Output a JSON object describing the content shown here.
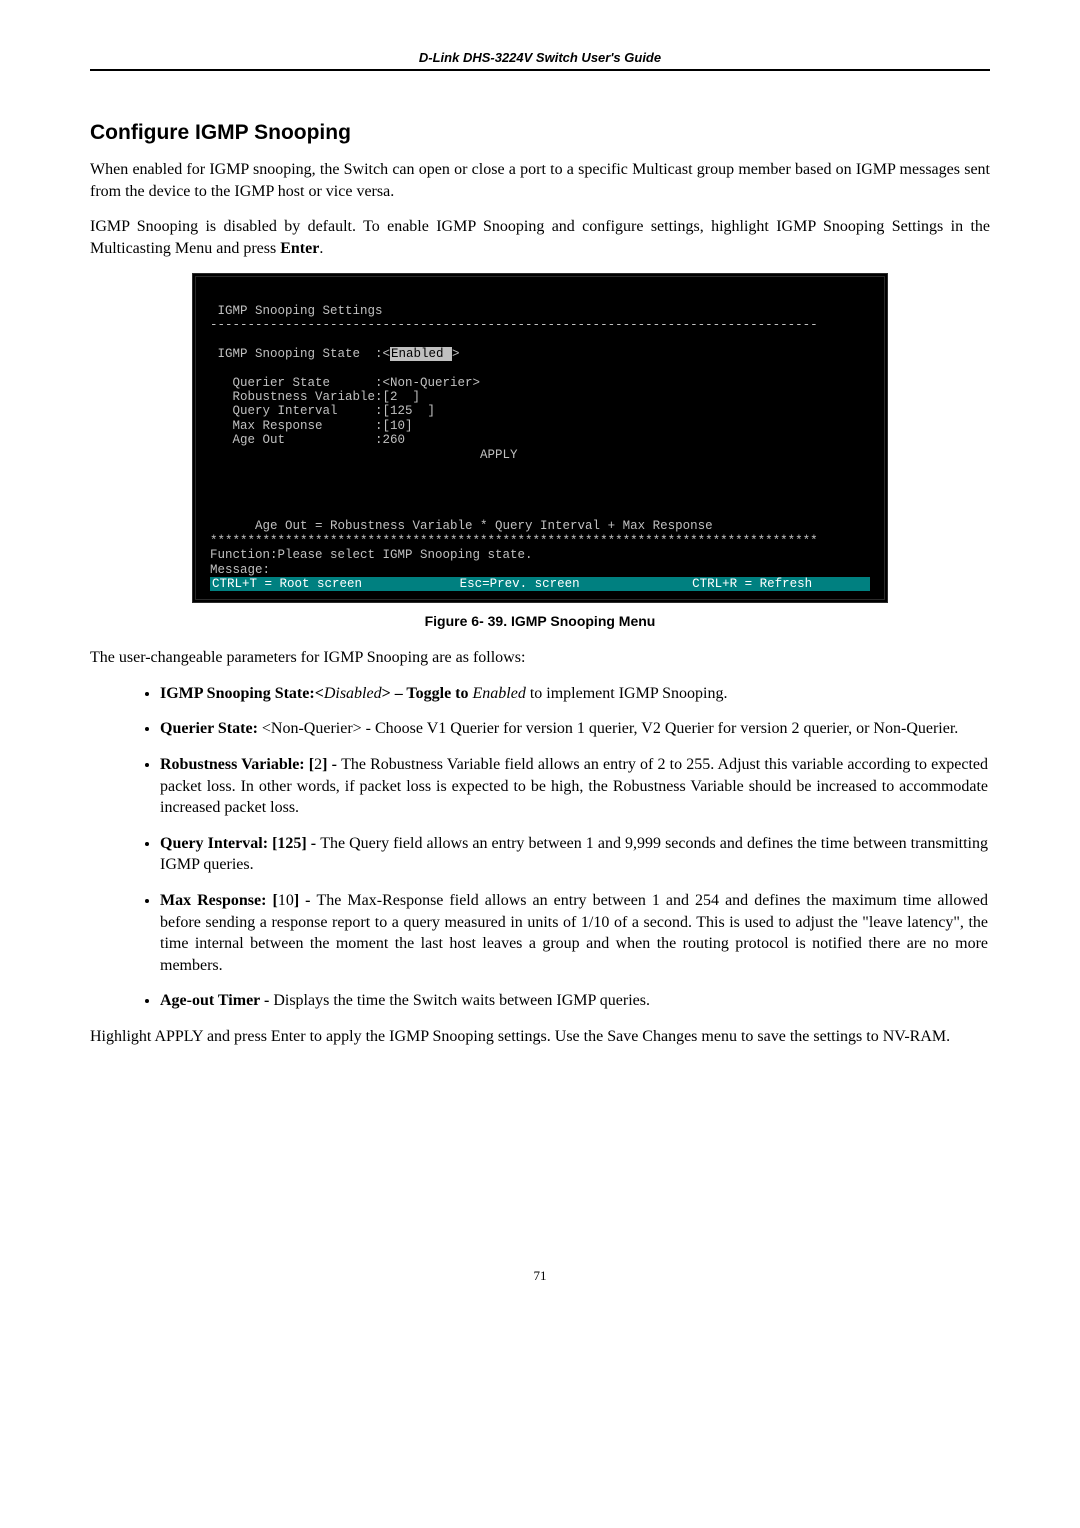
{
  "header": {
    "running_title": "D-Link DHS-3224V Switch User's Guide"
  },
  "section": {
    "title": "Configure IGMP Snooping",
    "para1": "When enabled for IGMP snooping, the Switch can open or close a port to a specific Multicast group member based on IGMP messages sent from the device to the IGMP host or vice versa.",
    "para2_a": "IGMP Snooping is disabled by default. To enable IGMP Snooping and configure settings, highlight IGMP Snooping Settings in the Multicasting Menu and press ",
    "para2_b": "Enter",
    "para2_c": "."
  },
  "terminal": {
    "title": " IGMP Snooping Settings",
    "dash_long": "---------------------------------------------------------------------------------",
    "state_label": " IGMP Snooping State  :<",
    "state_value": "Enabled ",
    "state_close": ">",
    "l_qstate": "   Querier State      :<Non-Querier>",
    "l_robust": "   Robustness Variable:[2  ]",
    "l_qint": "   Query Interval     :[125  ]",
    "l_maxresp": "   Max Response       :[10]",
    "l_ageout": "   Age Out            :260",
    "l_apply": "                                    APPLY",
    "l_formula": "      Age Out = Robustness Variable * Query Interval + Max Response",
    "dash_stars": "*********************************************************************************",
    "l_func": "Function:Please select IGMP Snooping state.",
    "l_msg": "Message:",
    "status_root": "CTRL+T = Root screen",
    "status_prev": "Esc=Prev. screen",
    "status_refresh": "CTRL+R = Refresh"
  },
  "figure": {
    "caption": "Figure 6- 39. IGMP Snooping Menu"
  },
  "after_fig": {
    "para": "The user-changeable parameters for IGMP Snooping are as follows:"
  },
  "bullets": {
    "b1_a": "IGMP Snooping State:<",
    "b1_b": "Disabled",
    "b1_c": "> – Toggle to ",
    "b1_d": "Enabled",
    "b1_e": " to implement IGMP Snooping.",
    "b2_a": "Querier State: ",
    "b2_b": "<Non-Querier> - Choose V1 Querier for version 1 querier, V2 Querier for version 2 querier, or Non-Querier.",
    "b3_a": "Robustness Variable: [",
    "b3_b": "2",
    "b3_c": "] - ",
    "b3_d": "The Robustness Variable field allows an entry of 2 to 255. Adjust this variable according to expected packet loss. In other words, if packet loss is expected to be high, the Robustness Variable should be increased to accommodate increased packet loss.",
    "b4_a": "Query Interval: [125] - ",
    "b4_b": "The Query field allows an entry between 1 and 9,999 seconds and defines the time between transmitting IGMP queries.",
    "b5_a": "Max Response: [",
    "b5_b": "10",
    "b5_c": "] - ",
    "b5_d": "The Max-Response field allows an entry between 1 and 254 and defines the maximum time allowed before sending a response report to a query measured in units of 1/10 of a second.  This is used to adjust the \"leave latency\", the time internal between the moment the last host leaves a group and when the routing protocol is notified there are no more members.",
    "b6_a": "Age-out Timer  - ",
    "b6_b": "Displays the time the Switch waits between IGMP queries."
  },
  "closing": {
    "para": "Highlight APPLY and press Enter to apply the IGMP Snooping settings. Use the Save Changes menu to save the settings to NV-RAM."
  },
  "page_number": "71",
  "colors": {
    "terminal_bg": "#000000",
    "terminal_fg": "#c0c0c0",
    "highlight_bg": "#c0c0c0",
    "highlight_fg": "#000000",
    "status_bg": "#008080",
    "status_fg": "#ffffff"
  },
  "fonts": {
    "body_family": "Times New Roman",
    "heading_family": "Arial",
    "mono_family": "Courier New",
    "body_size_pt": 12,
    "heading_size_pt": 16,
    "caption_size_pt": 11,
    "mono_size_pt": 9
  }
}
